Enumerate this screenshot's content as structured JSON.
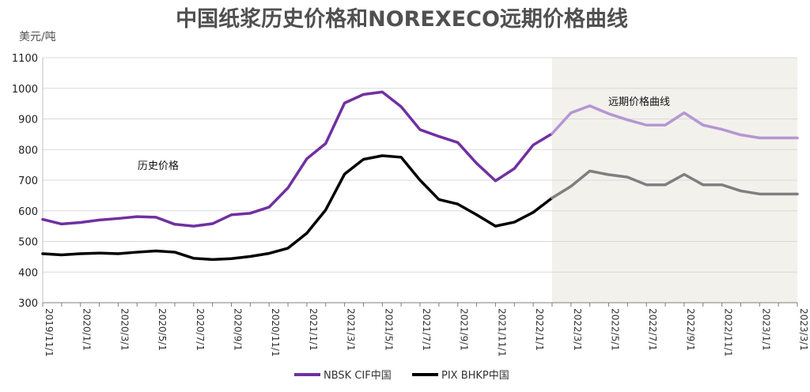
{
  "chart_data": {
    "type": "line",
    "title": "中国纸浆历史价格和NOREXECO远期价格曲线",
    "ylabel": "美元/吨",
    "ylim": [
      300,
      1100
    ],
    "yticks": [
      300,
      400,
      500,
      600,
      700,
      800,
      900,
      1000,
      1100
    ],
    "x_tick_labels": [
      "2019/11/1",
      "2020/1/1",
      "2020/3/1",
      "2020/5/1",
      "2020/7/1",
      "2020/9/1",
      "2020/11/1",
      "2021/1/1",
      "2021/3/1",
      "2021/5/1",
      "2021/7/1",
      "2021/9/1",
      "2021/11/1",
      "2022/1/1",
      "2022/3/1",
      "2022/5/1",
      "2022/7/1",
      "2022/9/1",
      "2022/11/1",
      "2023/1/1",
      "2023/3/1"
    ],
    "month_count": 41,
    "forward_start_index": 27,
    "annotations": {
      "history": "历史价格",
      "forward": "远期价格曲线"
    },
    "colors": {
      "nbsk_history": "#7030a0",
      "nbsk_forward": "#b596d2",
      "bhkp_history": "#000000",
      "bhkp_forward": "#7f7f7f",
      "forward_shade": "#f2f1ec",
      "grid": "#d9d9d9"
    },
    "series": [
      {
        "name": "NBSK CIF中国",
        "color": "#7030a0",
        "values": [
          572,
          557,
          562,
          570,
          575,
          581,
          579,
          556,
          550,
          558,
          587,
          592,
          612,
          675,
          770,
          820,
          952,
          980,
          988,
          940,
          865,
          843,
          823,
          755,
          698,
          738,
          815,
          852,
          920,
          943,
          917,
          897,
          880,
          880,
          920,
          880,
          866,
          848,
          838,
          838,
          838
        ]
      },
      {
        "name": "PIX BHKP中国",
        "color": "#000000",
        "values": [
          460,
          456,
          460,
          462,
          460,
          465,
          469,
          465,
          445,
          441,
          444,
          451,
          461,
          478,
          527,
          603,
          720,
          768,
          780,
          775,
          700,
          637,
          622,
          587,
          550,
          563,
          595,
          642,
          680,
          730,
          718,
          710,
          685,
          685,
          719,
          685,
          685,
          665,
          655,
          655,
          655
        ]
      }
    ],
    "legend": [
      "NBSK CIF中国",
      "PIX BHKP中国"
    ]
  }
}
